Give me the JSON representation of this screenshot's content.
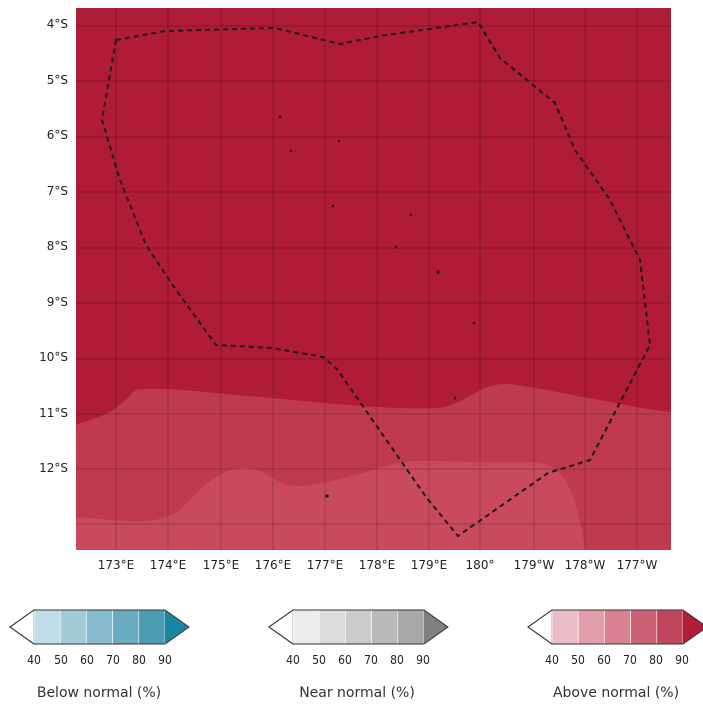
{
  "map": {
    "lat_labels": [
      "4°S",
      "5°S",
      "6°S",
      "7°S",
      "8°S",
      "9°S",
      "10°S",
      "11°S",
      "12°S"
    ],
    "lon_labels": [
      "173°E",
      "174°E",
      "175°E",
      "176°E",
      "177°E",
      "178°E",
      "179°E",
      "180°",
      "179°W",
      "178°W",
      "177°W"
    ],
    "fill_colors": {
      "dominant": "#b01c36",
      "lower_band": "#c03a4e",
      "lowest_band": "#c84a5c"
    },
    "boundary_style": "dashed"
  },
  "legends": [
    {
      "title": "Below normal (%)",
      "ticks": [
        "40",
        "50",
        "60",
        "70",
        "80",
        "90"
      ],
      "colors": [
        "#ffffff",
        "#bfdde6",
        "#a3ccd9",
        "#86bccd",
        "#69abbf",
        "#4b9cb2",
        "#2e8fa6",
        "#1a86a0"
      ]
    },
    {
      "title": "Near normal (%)",
      "ticks": [
        "40",
        "50",
        "60",
        "70",
        "80",
        "90"
      ],
      "colors": [
        "#ffffff",
        "#ececec",
        "#dcdcdc",
        "#cbcbcb",
        "#bababa",
        "#a8a8a8",
        "#969696",
        "#7f7f7f"
      ]
    },
    {
      "title": "Above normal (%)",
      "ticks": [
        "40",
        "50",
        "60",
        "70",
        "80",
        "90"
      ],
      "colors": [
        "#ffffff",
        "#ebbcc5",
        "#e29eab",
        "#d98192",
        "#cc6075",
        "#c0465d",
        "#b42e47",
        "#b11c3a"
      ]
    }
  ]
}
